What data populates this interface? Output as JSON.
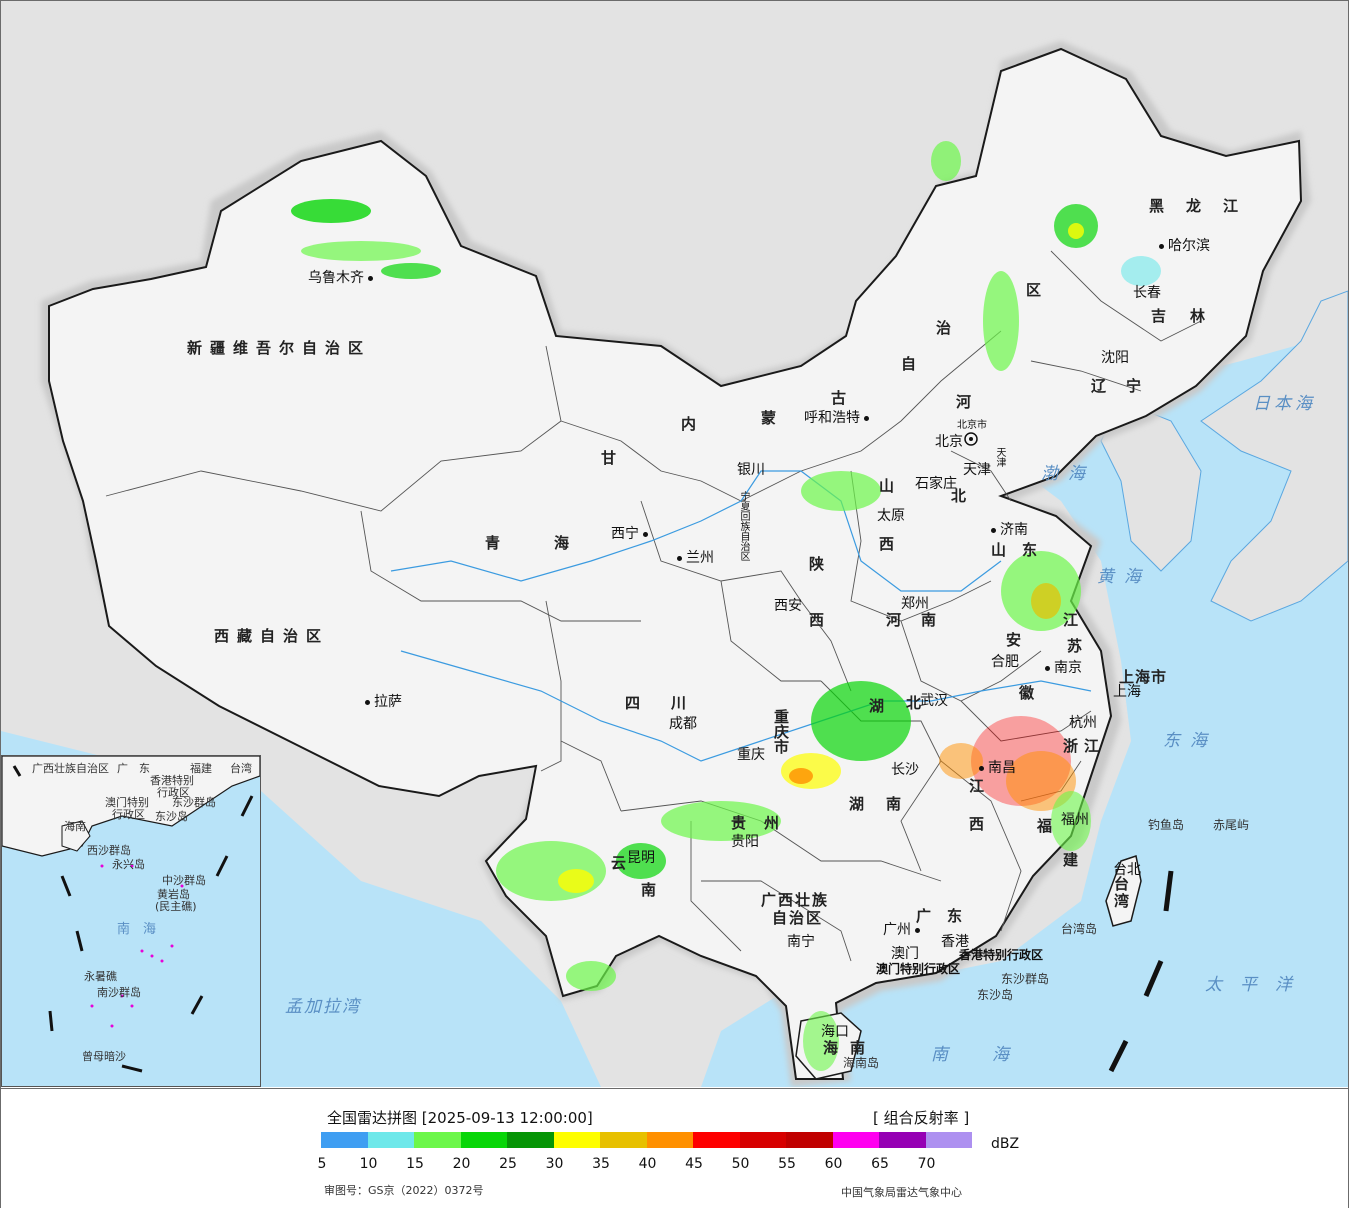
{
  "legend": {
    "title": "全国雷达拼图 [2025-09-13 12:00:00]",
    "product": "[ 组合反射率 ]",
    "unit": "dBZ",
    "scale_ticks": [
      "5",
      "10",
      "15",
      "20",
      "25",
      "30",
      "35",
      "40",
      "45",
      "50",
      "55",
      "60",
      "65",
      "70"
    ],
    "scale_colors": [
      "#3f9ef2",
      "#6ee8ea",
      "#6cf74a",
      "#08d608",
      "#069506",
      "#fefe00",
      "#e7c000",
      "#ff9000",
      "#fe0000",
      "#d70000",
      "#c00000",
      "#ff00f0",
      "#9600b4",
      "#ad90f0"
    ],
    "approval": "审图号：GS京（2022）0372号",
    "producer": "中国气象局雷达气象中心"
  },
  "provinces": [
    {
      "id": "xinjiang",
      "text": "新疆维吾尔自治区"
    },
    {
      "id": "xizang",
      "text": "西藏自治区"
    },
    {
      "id": "qinghai",
      "text": "青　　海"
    },
    {
      "id": "gansu",
      "text": "甘"
    },
    {
      "id": "sichuan",
      "text": "四　川"
    },
    {
      "id": "neimenggu-1",
      "text": "内"
    },
    {
      "id": "neimenggu-2",
      "text": "蒙"
    },
    {
      "id": "neimenggu-3",
      "text": "古"
    },
    {
      "id": "neimenggu-4",
      "text": "自"
    },
    {
      "id": "neimenggu-5",
      "text": "治"
    },
    {
      "id": "neimenggu-6",
      "text": "区"
    },
    {
      "id": "heilongjiang",
      "text": "黑龙江"
    },
    {
      "id": "jilin",
      "text": "吉林"
    },
    {
      "id": "liaoning",
      "text": "辽宁"
    },
    {
      "id": "hebei",
      "text": "北"
    },
    {
      "id": "hebei-2",
      "text": "河"
    },
    {
      "id": "shanxi",
      "text": "山"
    },
    {
      "id": "shanxi-2",
      "text": "西"
    },
    {
      "id": "shaanxi",
      "text": "陕"
    },
    {
      "id": "shaanxi-2",
      "text": "西"
    },
    {
      "id": "henan",
      "text": "河南"
    },
    {
      "id": "shandong",
      "text": "山东"
    },
    {
      "id": "jiangsu",
      "text": "江"
    },
    {
      "id": "jiangsu-2",
      "text": "苏"
    },
    {
      "id": "anhui",
      "text": "安"
    },
    {
      "id": "anhui-2",
      "text": "徽"
    },
    {
      "id": "hubei",
      "text": "湖"
    },
    {
      "id": "hubei-2",
      "text": "北"
    },
    {
      "id": "hunan",
      "text": "湖南"
    },
    {
      "id": "jiangxi",
      "text": "江"
    },
    {
      "id": "jiangxi-2",
      "text": "西"
    },
    {
      "id": "zhejiang",
      "text": "浙江"
    },
    {
      "id": "fujian",
      "text": "福"
    },
    {
      "id": "fujian-2",
      "text": "建"
    },
    {
      "id": "guangdong",
      "text": "广东"
    },
    {
      "id": "guangxi",
      "text": "广西壮族"
    },
    {
      "id": "guangxi-2",
      "text": "自治区"
    },
    {
      "id": "guizhou",
      "text": "贵州"
    },
    {
      "id": "yunnan",
      "text": "云"
    },
    {
      "id": "yunnan-2",
      "text": "南"
    },
    {
      "id": "chongqing",
      "text": "重庆市"
    },
    {
      "id": "hainan",
      "text": "海南"
    },
    {
      "id": "taiwan",
      "text": "台湾"
    },
    {
      "id": "shanghai",
      "text": "上海市"
    },
    {
      "id": "ningxia",
      "text": "宁夏回族自治区"
    },
    {
      "id": "beijing",
      "text": "北京市"
    },
    {
      "id": "tianjin",
      "text": "天津"
    },
    {
      "id": "xianggang",
      "text": "香港特别行政区"
    },
    {
      "id": "aomen",
      "text": "澳门特别行政区"
    }
  ],
  "cities": [
    {
      "id": "urumqi",
      "text": "乌鲁木齐"
    },
    {
      "id": "lhasa",
      "text": "拉萨"
    },
    {
      "id": "xining",
      "text": "西宁"
    },
    {
      "id": "lanzhou",
      "text": "兰州"
    },
    {
      "id": "yinchuan",
      "text": "银川"
    },
    {
      "id": "hohhot",
      "text": "呼和浩特"
    },
    {
      "id": "harbin",
      "text": "哈尔滨"
    },
    {
      "id": "changchun",
      "text": "长春"
    },
    {
      "id": "shenyang",
      "text": "沈阳"
    },
    {
      "id": "beijing-city",
      "text": "北京"
    },
    {
      "id": "tianjin-city",
      "text": "天津"
    },
    {
      "id": "shijiazhuang",
      "text": "石家庄"
    },
    {
      "id": "taiyuan",
      "text": "太原"
    },
    {
      "id": "jinan",
      "text": "济南"
    },
    {
      "id": "zhengzhou",
      "text": "郑州"
    },
    {
      "id": "xian",
      "text": "西安"
    },
    {
      "id": "chengdu",
      "text": "成都"
    },
    {
      "id": "chongqing-city",
      "text": "重庆"
    },
    {
      "id": "wuhan",
      "text": "武汉"
    },
    {
      "id": "hefei",
      "text": "合肥"
    },
    {
      "id": "nanjing",
      "text": "南京"
    },
    {
      "id": "shanghai-city",
      "text": "上海"
    },
    {
      "id": "hangzhou",
      "text": "杭州"
    },
    {
      "id": "nanchang",
      "text": "南昌"
    },
    {
      "id": "changsha",
      "text": "长沙"
    },
    {
      "id": "fuzhou",
      "text": "福州"
    },
    {
      "id": "guiyang",
      "text": "贵阳"
    },
    {
      "id": "kunming",
      "text": "昆明"
    },
    {
      "id": "nanning",
      "text": "南宁"
    },
    {
      "id": "guangzhou",
      "text": "广州"
    },
    {
      "id": "xianggang-city",
      "text": "香港"
    },
    {
      "id": "aomen-city",
      "text": "澳门"
    },
    {
      "id": "haikou",
      "text": "海口"
    },
    {
      "id": "taibei",
      "text": "台北"
    }
  ],
  "seas": [
    {
      "id": "bohai",
      "text": "渤海"
    },
    {
      "id": "huanghai",
      "text": "黄海"
    },
    {
      "id": "donghai",
      "text": "东海"
    },
    {
      "id": "nanhai",
      "text": "南海"
    },
    {
      "id": "taipingyang",
      "text": "太平洋"
    },
    {
      "id": "ribenhai",
      "text": "日本海"
    },
    {
      "id": "mengjialawan",
      "text": "孟加拉湾"
    }
  ],
  "islands": [
    {
      "id": "diaoyudao",
      "text": "钓鱼岛"
    },
    {
      "id": "chiweiyu",
      "text": "赤尾屿"
    },
    {
      "id": "taiwandao",
      "text": "台湾岛"
    },
    {
      "id": "dongshaqundao",
      "text": "东沙群岛"
    },
    {
      "id": "dongshadao",
      "text": "东沙岛"
    },
    {
      "id": "hainandao",
      "text": "海南岛"
    }
  ],
  "inset": {
    "labels": [
      {
        "id": "in-guangxi",
        "text": "广西壮族自治区"
      },
      {
        "id": "in-guangdong",
        "text": "广　东"
      },
      {
        "id": "in-fujian",
        "text": "福建"
      },
      {
        "id": "in-taiwan",
        "text": "台湾"
      },
      {
        "id": "in-xianggang",
        "text": "香港特别"
      },
      {
        "id": "in-xianggang-2",
        "text": "行政区"
      },
      {
        "id": "in-aomen",
        "text": "澳门特别"
      },
      {
        "id": "in-aomen-2",
        "text": "行政区"
      },
      {
        "id": "in-dongsha",
        "text": "东沙群岛"
      },
      {
        "id": "in-dongshadao",
        "text": "东沙岛"
      },
      {
        "id": "in-hainan",
        "text": "海南"
      },
      {
        "id": "in-xisha",
        "text": "西沙群岛"
      },
      {
        "id": "in-yongxingdao",
        "text": "永兴岛"
      },
      {
        "id": "in-zhongsha",
        "text": "中沙群岛"
      },
      {
        "id": "in-huangyandao",
        "text": "黄岩岛"
      },
      {
        "id": "in-minzhujiao",
        "text": "(民主礁)"
      },
      {
        "id": "in-nanhai",
        "text": "南　海"
      },
      {
        "id": "in-yongshujiao",
        "text": "永暑礁"
      },
      {
        "id": "in-nansha",
        "text": "南沙群岛"
      },
      {
        "id": "in-zengmuansha",
        "text": "曾母暗沙"
      }
    ]
  }
}
